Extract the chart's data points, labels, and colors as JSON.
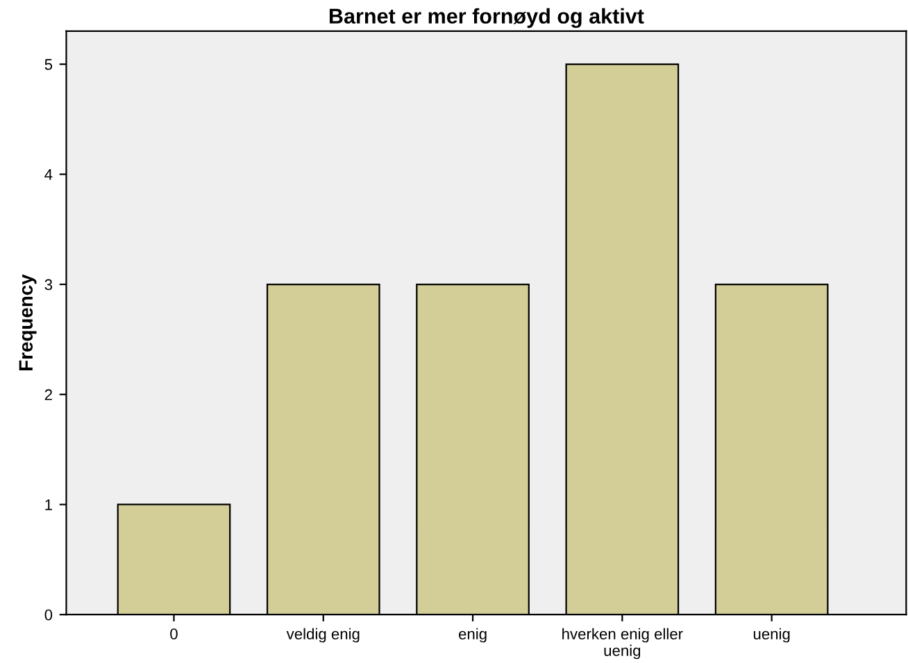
{
  "chart_data": {
    "type": "bar",
    "title": "Barnet er mer fornøyd og aktivt",
    "ylabel": "Frequency",
    "categories": [
      "0",
      "veldig enig",
      "enig",
      "hverken enig eller\nuenig",
      "uenig"
    ],
    "values": [
      1,
      3,
      3,
      5,
      3
    ],
    "color": "#d3ce97",
    "ylim": [
      0,
      5.3
    ],
    "yticks": [
      0,
      1,
      2,
      3,
      4,
      5
    ],
    "grid": false
  }
}
